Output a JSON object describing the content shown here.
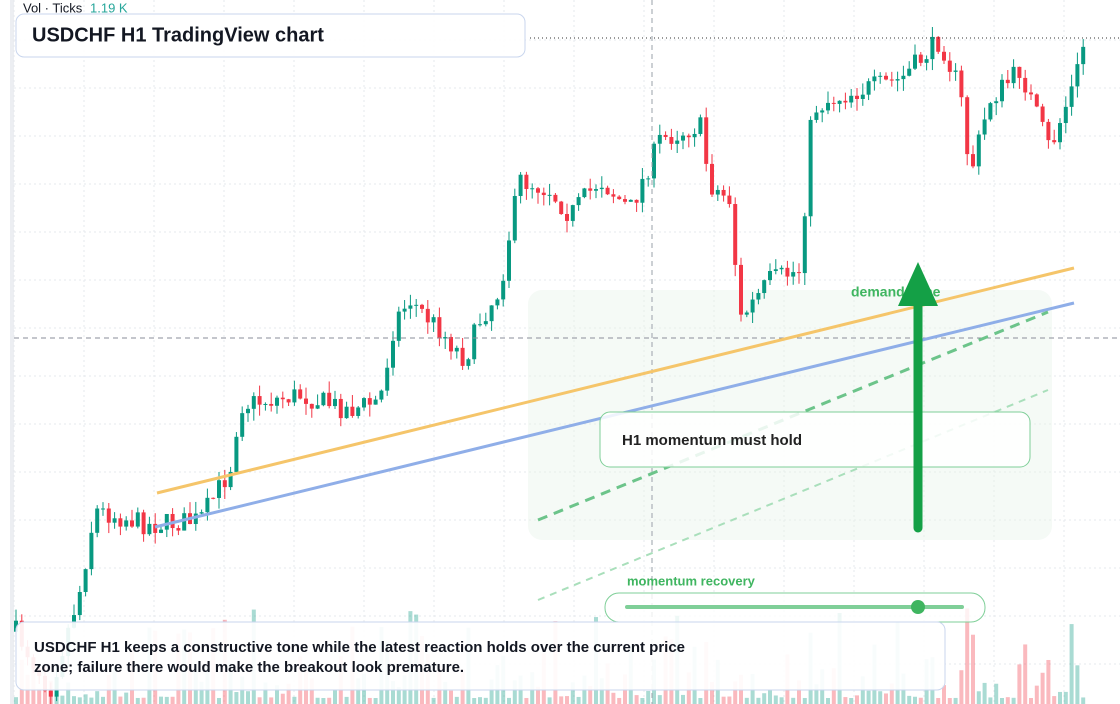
{
  "header": {
    "indicator": "Vol · Ticks",
    "indicator_value": "1.19 K",
    "title": "USDCHF H1 TradingView chart"
  },
  "annotations": {
    "zone_label": "demand zone",
    "callout": "H1 momentum must hold",
    "slider_label": "momentum recovery"
  },
  "caption": {
    "line1": "USDCHF H1 keeps a constructive tone while the latest reaction holds over the current price",
    "line2": "zone; failure there would make the breakout look premature."
  }
}
